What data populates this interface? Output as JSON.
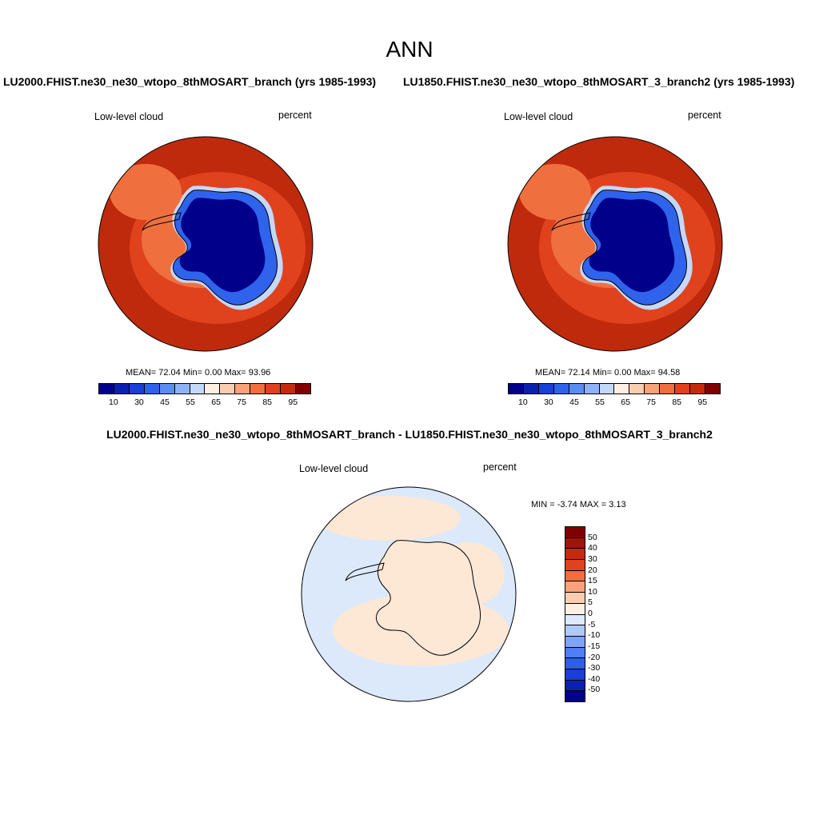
{
  "main_title": "ANN",
  "panels": [
    {
      "title": "LU2000.FHIST.ne30_ne30_wtopo_8thMOSART_branch (yrs 1985-1993)",
      "variable": "Low-level cloud",
      "units": "percent",
      "stats": "MEAN=  72.04  Min=   0.00  Max=  93.96"
    },
    {
      "title": "LU1850.FHIST.ne30_ne30_wtopo_8thMOSART_3_branch2 (yrs 1985-1993)",
      "variable": "Low-level cloud",
      "units": "percent",
      "stats": "MEAN=  72.14  Min=   0.00  Max=  94.58"
    }
  ],
  "diff_panel": {
    "title": "LU2000.FHIST.ne30_ne30_wtopo_8thMOSART_branch - LU1850.FHIST.ne30_ne30_wtopo_8thMOSART_3_branch2",
    "variable": "Low-level cloud",
    "units": "percent",
    "stats": "MIN =  -3.74 MAX =   3.13"
  },
  "colorbar": {
    "colors": [
      "#00008a",
      "#0a21b0",
      "#1a3fd4",
      "#2f63ec",
      "#5a8cf4",
      "#8fb2f7",
      "#c4d8fa",
      "#fdf0e3",
      "#fbcdb0",
      "#f8a27a",
      "#f06f3f",
      "#e0421d",
      "#c52a0e",
      "#7f0000"
    ],
    "ticks": [
      "10",
      "30",
      "45",
      "55",
      "65",
      "75",
      "85",
      "95"
    ]
  },
  "diff_colorbar": {
    "colors": [
      "#7f0000",
      "#a11405",
      "#c52a0e",
      "#e0421d",
      "#f06f3f",
      "#f8a27a",
      "#fbcdb0",
      "#fdf0e3",
      "#ddeafc",
      "#b0c9f8",
      "#7fa3f5",
      "#4f7ff0",
      "#2f5de6",
      "#1a3fd4",
      "#0a21b0",
      "#00008a"
    ],
    "ticks": [
      "50",
      "40",
      "30",
      "20",
      "15",
      "10",
      "5",
      "0",
      "-5",
      "-10",
      "-15",
      "-20",
      "-30",
      "-40",
      "-50"
    ]
  },
  "map_colors": {
    "ocean_high": "#bf2a0d",
    "ocean_mid": "#e0421d",
    "ocean_low": "#f06f3f",
    "ice_core": "#00008a",
    "ice_edge": "#2f63ec",
    "diff_pos": "#fde8d6",
    "diff_neg": "#dbe9fb",
    "coast": "#000000"
  }
}
